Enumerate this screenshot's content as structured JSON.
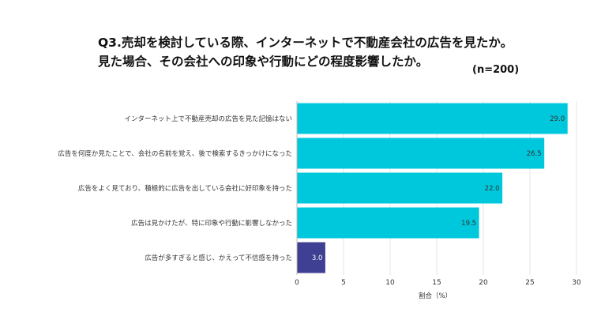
{
  "title_line1": "Q3.売却を検討している際、インターネットで不動産会社の広告を見たか。",
  "title_line2": "見た場合、その会社への印象や行動にどの程度影響したか。",
  "sample_size": "(n=200)",
  "chart_data": {
    "type": "bar",
    "orientation": "horizontal",
    "categories": [
      "インターネット上で不動産売却の広告を見た記憶はない",
      "広告を何度か見たことで、会社の名前を覚え、後で検索するきっかけになった",
      "広告をよく見ており、積極的に広告を出している会社に好印象を持った",
      "広告は見かけたが、特に印象や行動に影響しなかった",
      "広告が多すぎると感じ、かえって不信感を持った"
    ],
    "values": [
      29.0,
      26.5,
      22.0,
      19.5,
      3.0
    ],
    "value_labels": [
      "29.0",
      "26.5",
      "22.0",
      "19.5",
      "3.0"
    ],
    "bar_colors": [
      "#00c8dc",
      "#00c8dc",
      "#00c8dc",
      "#00c8dc",
      "#3f3f93"
    ],
    "xlabel": "割合（%）",
    "xlim": [
      0,
      30
    ],
    "xticks": [
      "0",
      "5",
      "10",
      "15",
      "20",
      "25",
      "30"
    ],
    "grid": true
  }
}
